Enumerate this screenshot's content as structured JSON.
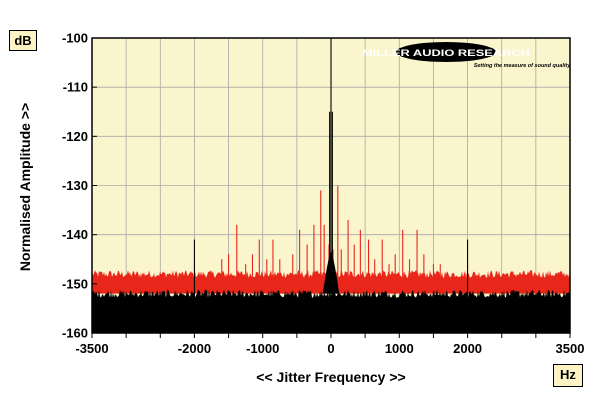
{
  "units": {
    "y": "dB",
    "x": "Hz"
  },
  "logo": {
    "name": "MILLER AUDIO RESEARCH",
    "tagline": "Setting the measure of sound quality"
  },
  "chart_data": {
    "type": "line",
    "xlabel": "<< Jitter Frequency >>",
    "ylabel": "Normalised Amplitude >>",
    "xlim": [
      -3500,
      3500
    ],
    "ylim": [
      -160,
      -100
    ],
    "xticks": [
      -3500,
      -2000,
      -1000,
      0,
      1000,
      2000,
      3500
    ],
    "yticks": [
      -100,
      -110,
      -120,
      -130,
      -140,
      -150,
      -160
    ],
    "xtick_labels": [
      "-3500",
      "-2000",
      "-1000",
      "0",
      "1000",
      "2000",
      "3500"
    ],
    "ytick_labels": [
      "-100",
      "-110",
      "-120",
      "-130",
      "-140",
      "-150",
      "-160"
    ],
    "grid": true,
    "colors": {
      "plot_bg": "#fbf5cd",
      "grid": "#a8a8a8",
      "red_series": "#e8261a",
      "black_series": "#000000"
    },
    "series": [
      {
        "color": "red",
        "noise_floor": [
          -152,
          -148
        ],
        "peaks": [
          {
            "x": -1600,
            "y": -145
          },
          {
            "x": -1500,
            "y": -144
          },
          {
            "x": -1380,
            "y": -138
          },
          {
            "x": -1250,
            "y": -146
          },
          {
            "x": -1150,
            "y": -144
          },
          {
            "x": -1050,
            "y": -141
          },
          {
            "x": -940,
            "y": -145
          },
          {
            "x": -850,
            "y": -141
          },
          {
            "x": -750,
            "y": -145
          },
          {
            "x": -560,
            "y": -144
          },
          {
            "x": -460,
            "y": -139
          },
          {
            "x": -350,
            "y": -142
          },
          {
            "x": -250,
            "y": -138
          },
          {
            "x": -150,
            "y": -131
          },
          {
            "x": -100,
            "y": -138
          },
          {
            "x": -30,
            "y": -142
          },
          {
            "x": 30,
            "y": -143
          },
          {
            "x": 100,
            "y": -130
          },
          {
            "x": 150,
            "y": -143
          },
          {
            "x": 250,
            "y": -137
          },
          {
            "x": 340,
            "y": -142
          },
          {
            "x": 430,
            "y": -139
          },
          {
            "x": 550,
            "y": -141
          },
          {
            "x": 640,
            "y": -145
          },
          {
            "x": 750,
            "y": -141
          },
          {
            "x": 850,
            "y": -146
          },
          {
            "x": 940,
            "y": -144
          },
          {
            "x": 1050,
            "y": -139
          },
          {
            "x": 1150,
            "y": -145
          },
          {
            "x": 1260,
            "y": -139
          },
          {
            "x": 1360,
            "y": -144
          },
          {
            "x": 1500,
            "y": -146
          },
          {
            "x": 1600,
            "y": -146
          }
        ]
      },
      {
        "color": "black",
        "noise_floor": [
          -160,
          -152
        ],
        "peaks": [
          {
            "x": -2000,
            "y": -141
          },
          {
            "x": 0,
            "y": -100
          },
          {
            "x": -20,
            "y": -115
          },
          {
            "x": 20,
            "y": -115
          },
          {
            "x": 2000,
            "y": -141
          }
        ]
      }
    ]
  }
}
